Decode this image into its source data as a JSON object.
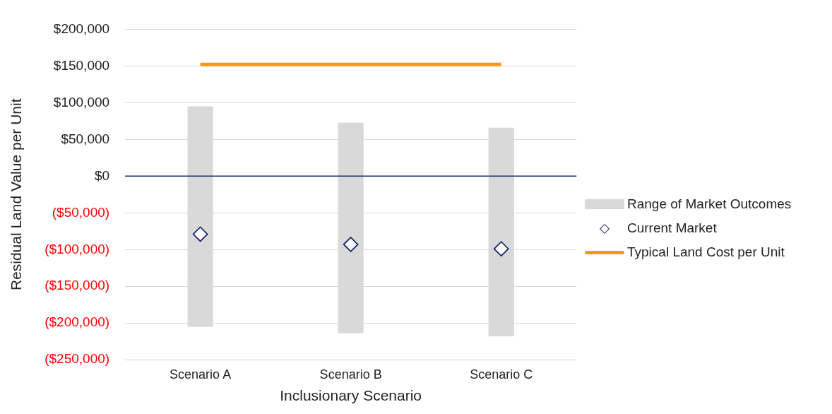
{
  "chart_data": {
    "type": "bar",
    "xlabel": "Inclusionary Scenario",
    "ylabel": "Residual Land Value per Unit",
    "categories": [
      "Scenario A",
      "Scenario B",
      "Scenario C"
    ],
    "series": [
      {
        "name": "Range of Market Outcomes",
        "type": "bar",
        "color": "#d9d9d9",
        "base": [
          -205000,
          -214000,
          -218000
        ],
        "values": [
          300000,
          287000,
          284000
        ]
      },
      {
        "name": "Current Market",
        "type": "scatter",
        "color": "#1f2a6b",
        "marker": "diamond",
        "values": [
          -79000,
          -93000,
          -99000
        ]
      },
      {
        "name": "Typical Land Cost per Unit",
        "type": "line",
        "color": "#f7981d",
        "values": [
          152000,
          152000,
          152000
        ]
      }
    ],
    "ylim": [
      -250000,
      200000
    ],
    "yticks": [
      {
        "value": -250000,
        "label": "($250,000)"
      },
      {
        "value": -200000,
        "label": "($200,000)"
      },
      {
        "value": -150000,
        "label": "($150,000)"
      },
      {
        "value": -100000,
        "label": "($100,000)"
      },
      {
        "value": -50000,
        "label": "($50,000)"
      },
      {
        "value": 0,
        "label": "$0"
      },
      {
        "value": 50000,
        "label": "$50,000"
      },
      {
        "value": 100000,
        "label": "$100,000"
      },
      {
        "value": 150000,
        "label": "$150,000"
      },
      {
        "value": 200000,
        "label": "$200,000"
      }
    ],
    "grid": "y",
    "legend": "right",
    "ref_lines": [
      {
        "axis": "y",
        "value": 0,
        "color": "#1f2a6b"
      }
    ]
  }
}
